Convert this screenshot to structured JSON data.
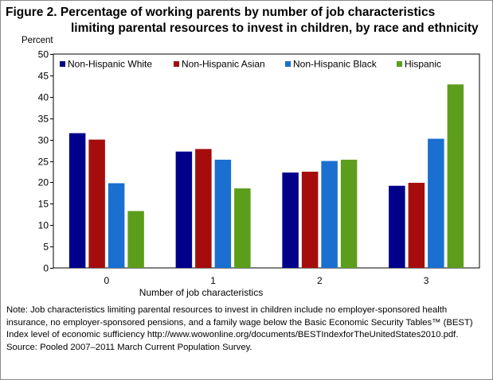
{
  "figure": {
    "title_line1": "Figure 2. Percentage of working parents by number of job characteristics",
    "title_line2": "limiting parental resources to invest in children, by race and ethnicity",
    "note": "Note: Job characteristics limiting parental resources to invest in children include no employer-sponsored health insurance, no employer-sponsored pensions, and a family wage below the Basic Economic Security Tables™ (BEST) Index level of economic sufficiency http://www.wowonline.org/documents/BESTIndexforTheUnitedStates2010.pdf.",
    "source": "Source: Pooled 2007–2011 March Current Population Survey."
  },
  "chart_data": {
    "type": "bar",
    "title": "Figure 2. Percentage of working parents by number of job characteristics limiting parental resources to invest in children, by race and ethnicity",
    "xlabel": "Number of job characteristics",
    "ylabel": "Percent",
    "categories": [
      "0",
      "1",
      "2",
      "3"
    ],
    "ylim": [
      0,
      50
    ],
    "yticks": [
      0,
      5,
      10,
      15,
      20,
      25,
      30,
      35,
      40,
      45,
      50
    ],
    "grid": false,
    "legend_position": "top",
    "series": [
      {
        "name": "Non-Hispanic White",
        "color": "#00008b",
        "values": [
          31.5,
          27.2,
          22.3,
          19.2
        ]
      },
      {
        "name": "Non-Hispanic Asian",
        "color": "#a50d0d",
        "values": [
          30.0,
          27.8,
          22.5,
          19.9
        ]
      },
      {
        "name": "Non-Hispanic Black",
        "color": "#1a6fd0",
        "values": [
          19.8,
          25.3,
          25.0,
          30.2
        ]
      },
      {
        "name": "Hispanic",
        "color": "#5c9e1c",
        "values": [
          13.3,
          18.6,
          25.3,
          42.9
        ]
      }
    ]
  }
}
